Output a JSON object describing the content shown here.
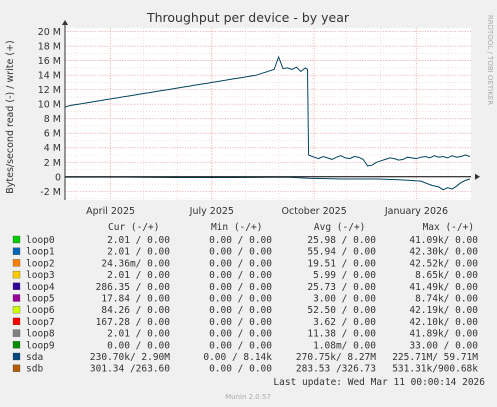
{
  "chart_data": {
    "type": "line",
    "title": "Throughput per device - by year",
    "ylabel": "Bytes/second read (-) / write (+)",
    "side_label": "RRDTOOL / TOBI OETIKER",
    "ylim": [
      -3.2,
      20.5
    ],
    "yticks": [
      {
        "v": 20,
        "label": "20 M"
      },
      {
        "v": 18,
        "label": "18 M"
      },
      {
        "v": 16,
        "label": "16 M"
      },
      {
        "v": 14,
        "label": "14 M"
      },
      {
        "v": 12,
        "label": "12 M"
      },
      {
        "v": 10,
        "label": "10 M"
      },
      {
        "v": 8,
        "label": "8 M"
      },
      {
        "v": 6,
        "label": "6 M"
      },
      {
        "v": 4,
        "label": "4 M"
      },
      {
        "v": 2,
        "label": "2 M"
      },
      {
        "v": 0,
        "label": "0"
      },
      {
        "v": -2,
        "label": "-2 M"
      }
    ],
    "xlim": [
      0,
      365
    ],
    "xticks": [
      {
        "v": 41,
        "label": "April 2025"
      },
      {
        "v": 132,
        "label": "July 2025"
      },
      {
        "v": 224,
        "label": "October 2025"
      },
      {
        "v": 316,
        "label": "January 2026"
      }
    ],
    "grid": true,
    "series": [
      {
        "name": "sda",
        "color": "#00455f",
        "write": [
          [
            0,
            9.6
          ],
          [
            4,
            9.8
          ],
          [
            8,
            9.9
          ],
          [
            12,
            10.0
          ],
          [
            16,
            10.1
          ],
          [
            20,
            10.2
          ],
          [
            24,
            10.3
          ],
          [
            28,
            10.4
          ],
          [
            32,
            10.5
          ],
          [
            36,
            10.6
          ],
          [
            40,
            10.7
          ],
          [
            44,
            10.8
          ],
          [
            48,
            10.9
          ],
          [
            52,
            11.0
          ],
          [
            56,
            11.1
          ],
          [
            60,
            11.2
          ],
          [
            64,
            11.3
          ],
          [
            68,
            11.4
          ],
          [
            72,
            11.5
          ],
          [
            76,
            11.6
          ],
          [
            80,
            11.7
          ],
          [
            84,
            11.8
          ],
          [
            88,
            11.9
          ],
          [
            92,
            12.0
          ],
          [
            96,
            12.1
          ],
          [
            100,
            12.2
          ],
          [
            104,
            12.3
          ],
          [
            108,
            12.4
          ],
          [
            112,
            12.5
          ],
          [
            116,
            12.6
          ],
          [
            120,
            12.7
          ],
          [
            124,
            12.8
          ],
          [
            128,
            12.9
          ],
          [
            132,
            13.0
          ],
          [
            136,
            13.1
          ],
          [
            140,
            13.2
          ],
          [
            144,
            13.3
          ],
          [
            148,
            13.4
          ],
          [
            152,
            13.5
          ],
          [
            156,
            13.6
          ],
          [
            160,
            13.7
          ],
          [
            164,
            13.8
          ],
          [
            168,
            13.9
          ],
          [
            172,
            14.0
          ],
          [
            176,
            14.2
          ],
          [
            180,
            14.4
          ],
          [
            184,
            14.6
          ],
          [
            188,
            14.8
          ],
          [
            192,
            16.5
          ],
          [
            196,
            14.9
          ],
          [
            200,
            15.0
          ],
          [
            204,
            14.8
          ],
          [
            208,
            15.1
          ],
          [
            212,
            14.5
          ],
          [
            216,
            15.0
          ],
          [
            218,
            14.8
          ],
          [
            219,
            3.0
          ],
          [
            224,
            2.7
          ],
          [
            228,
            2.5
          ],
          [
            232,
            2.8
          ],
          [
            236,
            2.6
          ],
          [
            240,
            2.4
          ],
          [
            244,
            2.7
          ],
          [
            248,
            2.9
          ],
          [
            252,
            2.6
          ],
          [
            256,
            2.5
          ],
          [
            260,
            2.8
          ],
          [
            264,
            2.7
          ],
          [
            268,
            2.4
          ],
          [
            272,
            1.5
          ],
          [
            276,
            1.6
          ],
          [
            280,
            2.0
          ],
          [
            284,
            2.2
          ],
          [
            288,
            2.4
          ],
          [
            292,
            2.6
          ],
          [
            296,
            2.5
          ],
          [
            300,
            2.3
          ],
          [
            304,
            2.4
          ],
          [
            308,
            2.7
          ],
          [
            312,
            2.6
          ],
          [
            316,
            2.5
          ],
          [
            320,
            2.7
          ],
          [
            324,
            2.8
          ],
          [
            328,
            2.6
          ],
          [
            332,
            2.9
          ],
          [
            336,
            2.7
          ],
          [
            340,
            2.8
          ],
          [
            344,
            2.6
          ],
          [
            348,
            2.9
          ],
          [
            352,
            2.7
          ],
          [
            356,
            2.8
          ],
          [
            360,
            3.0
          ],
          [
            364,
            2.8
          ]
        ],
        "read": [
          [
            0,
            -0.05
          ],
          [
            50,
            -0.05
          ],
          [
            100,
            -0.1
          ],
          [
            150,
            -0.1
          ],
          [
            200,
            -0.05
          ],
          [
            219,
            -0.2
          ],
          [
            250,
            -0.3
          ],
          [
            280,
            -0.3
          ],
          [
            300,
            -0.4
          ],
          [
            310,
            -0.5
          ],
          [
            320,
            -0.6
          ],
          [
            330,
            -1.2
          ],
          [
            336,
            -1.4
          ],
          [
            340,
            -1.8
          ],
          [
            344,
            -1.5
          ],
          [
            348,
            -1.7
          ],
          [
            352,
            -1.3
          ],
          [
            356,
            -0.8
          ],
          [
            360,
            -0.5
          ],
          [
            364,
            -0.3
          ]
        ]
      }
    ],
    "legend_header": "Cur (-/+)         Min (-/+)         Avg (-/+)          Max (-/+)",
    "legend": [
      {
        "name": "loop0",
        "color": "#00cc00",
        "cur": "2.01 /  0.00",
        "min": "0.00 /  0.00",
        "avg": "25.98 /  0.00",
        "max": "41.09k/  0.00"
      },
      {
        "name": "loop1",
        "color": "#0066b3",
        "cur": "2.01 /  0.00",
        "min": "0.00 /  0.00",
        "avg": "55.94 /  0.00",
        "max": "42.30k/  0.00"
      },
      {
        "name": "loop2",
        "color": "#ff8000",
        "cur": "24.36m/  0.00",
        "min": "0.00 /  0.00",
        "avg": "19.51 /  0.00",
        "max": "42.52k/  0.00"
      },
      {
        "name": "loop3",
        "color": "#ffcc00",
        "cur": "2.01 /  0.00",
        "min": "0.00 /  0.00",
        "avg": "5.99 /  0.00",
        "max": "8.65k/  0.00"
      },
      {
        "name": "loop4",
        "color": "#330099",
        "cur": "286.35 /  0.00",
        "min": "0.00 /  0.00",
        "avg": "25.73 /  0.00",
        "max": "41.49k/  0.00"
      },
      {
        "name": "loop5",
        "color": "#990099",
        "cur": "17.84 /  0.00",
        "min": "0.00 /  0.00",
        "avg": "3.00 /  0.00",
        "max": "8.74k/  0.00"
      },
      {
        "name": "loop6",
        "color": "#ccff00",
        "cur": "84.26 /  0.00",
        "min": "0.00 /  0.00",
        "avg": "52.50 /  0.00",
        "max": "42.19k/  0.00"
      },
      {
        "name": "loop7",
        "color": "#ff0000",
        "cur": "167.28 /  0.00",
        "min": "0.00 /  0.00",
        "avg": "3.62 /  0.00",
        "max": "42.10k/  0.00"
      },
      {
        "name": "loop8",
        "color": "#808080",
        "cur": "2.01 /  0.00",
        "min": "0.00 /  0.00",
        "avg": "11.38 /  0.00",
        "max": "41.89k/  0.00"
      },
      {
        "name": "loop9",
        "color": "#008f00",
        "cur": "0.00 /  0.00",
        "min": "0.00 /  0.00",
        "avg": "1.08m/  0.00",
        "max": "33.00 /  0.00"
      },
      {
        "name": "sda",
        "color": "#00487d",
        "cur": "230.70k/  2.90M",
        "min": "0.00 /  8.14k",
        "avg": "270.75k/  8.27M",
        "max": "225.71M/ 59.71M"
      },
      {
        "name": "sdb",
        "color": "#b35a00",
        "cur": "301.34 /263.60",
        "min": "0.00 /  0.00",
        "avg": "283.53 /326.73",
        "max": "531.31k/900.68k"
      }
    ],
    "last_update": "Last update: Wed Mar 11 00:00:14 2026",
    "footer": "Munin 2.0.57"
  }
}
